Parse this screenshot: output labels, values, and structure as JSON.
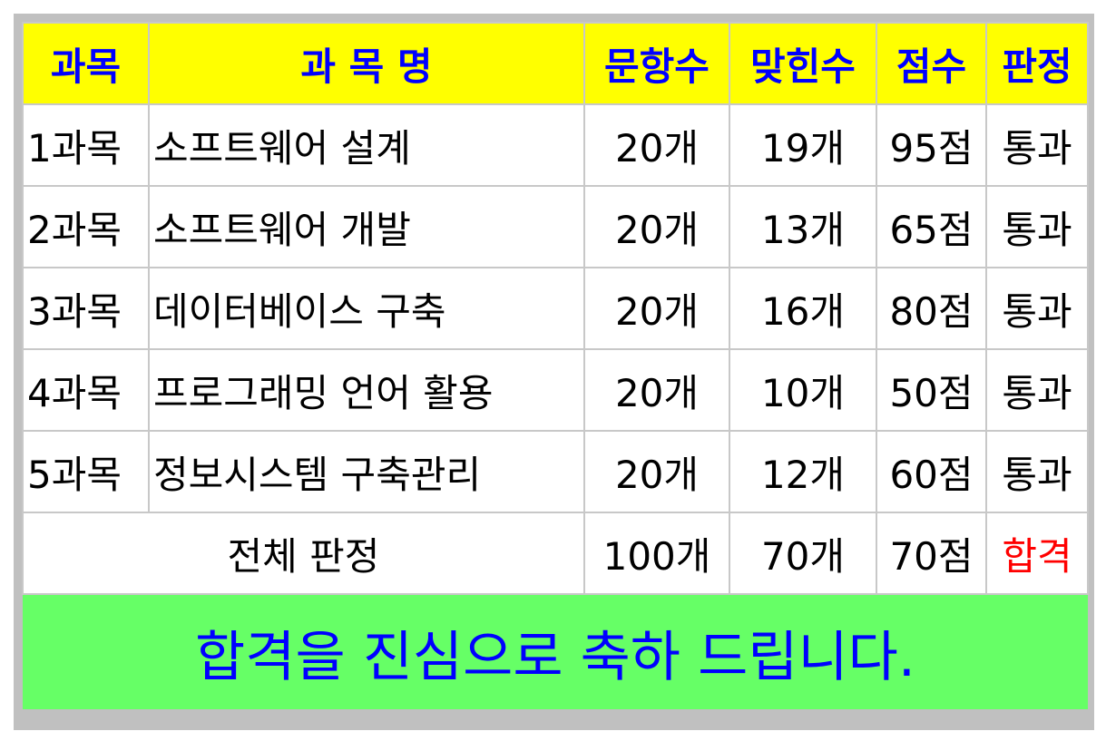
{
  "colors": {
    "header_bg": "#ffff00",
    "header_text": "#0000ff",
    "message_bg": "#66ff66",
    "message_text": "#0000ff",
    "final_result": "#ff0000",
    "frame": "#c0c0c0"
  },
  "headers": [
    "과목",
    "과 목 명",
    "문항수",
    "맞힌수",
    "점수",
    "판정"
  ],
  "rows": [
    {
      "subject": "1과목",
      "name": "소프트웨어 설계",
      "questions": "20개",
      "correct": "19개",
      "score": "95점",
      "result": "통과"
    },
    {
      "subject": "2과목",
      "name": "소프트웨어 개발",
      "questions": "20개",
      "correct": "13개",
      "score": "65점",
      "result": "통과"
    },
    {
      "subject": "3과목",
      "name": "데이터베이스 구축",
      "questions": "20개",
      "correct": "16개",
      "score": "80점",
      "result": "통과"
    },
    {
      "subject": "4과목",
      "name": "프로그래밍 언어 활용",
      "questions": "20개",
      "correct": "10개",
      "score": "50점",
      "result": "통과"
    },
    {
      "subject": "5과목",
      "name": "정보시스템 구축관리",
      "questions": "20개",
      "correct": "12개",
      "score": "60점",
      "result": "통과"
    }
  ],
  "total": {
    "label": "전체 판정",
    "questions": "100개",
    "correct": "70개",
    "score": "70점",
    "result": "합격"
  },
  "message": "합격을 진심으로 축하 드립니다."
}
